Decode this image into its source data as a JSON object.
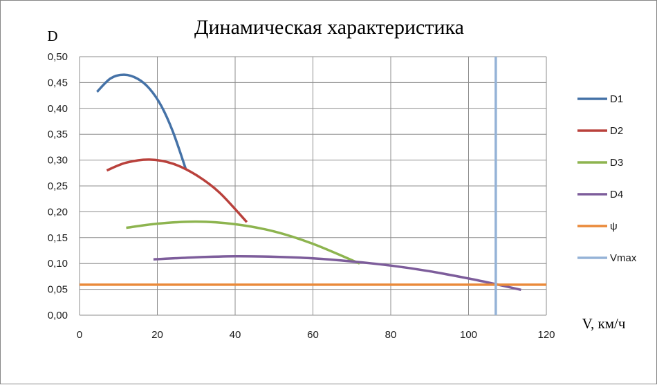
{
  "chart_data": {
    "type": "line",
    "title": "Динамическая характеристика",
    "xlabel": "V, км/ч",
    "ylabel": "D",
    "xlim": [
      0,
      120
    ],
    "ylim": [
      0,
      0.5
    ],
    "x_ticks": [
      "0",
      "20",
      "40",
      "60",
      "80",
      "100",
      "120"
    ],
    "y_ticks": [
      "0,00",
      "0,05",
      "0,10",
      "0,15",
      "0,20",
      "0,25",
      "0,30",
      "0,35",
      "0,40",
      "0,45",
      "0,50"
    ],
    "grid": true,
    "legend_position": "right",
    "series": [
      {
        "name": "D1",
        "color": "#4572a7",
        "x": [
          4.5,
          8,
          11.5,
          15,
          18,
          21,
          24,
          27.3
        ],
        "y": [
          0.432,
          0.458,
          0.465,
          0.457,
          0.438,
          0.405,
          0.355,
          0.283
        ]
      },
      {
        "name": "D2",
        "color": "#b9413c",
        "x": [
          7,
          12,
          18,
          24,
          30,
          36,
          43
        ],
        "y": [
          0.28,
          0.295,
          0.301,
          0.293,
          0.271,
          0.237,
          0.18
        ]
      },
      {
        "name": "D3",
        "color": "#8db44f",
        "x": [
          12,
          20,
          30,
          40,
          50,
          60,
          72
        ],
        "y": [
          0.169,
          0.177,
          0.181,
          0.176,
          0.162,
          0.138,
          0.1
        ]
      },
      {
        "name": "D4",
        "color": "#7d5d9b",
        "x": [
          19,
          30,
          40,
          50,
          60,
          70,
          80,
          90,
          100,
          107,
          113.5
        ],
        "y": [
          0.108,
          0.112,
          0.114,
          0.113,
          0.11,
          0.104,
          0.096,
          0.085,
          0.071,
          0.06,
          0.049
        ]
      },
      {
        "name": "ψ",
        "color": "#ea8a3a",
        "x": [
          0,
          120
        ],
        "y": [
          0.059,
          0.059
        ]
      },
      {
        "name": "Vmax",
        "color": "#95b3d7",
        "x": [
          107,
          107
        ],
        "y": [
          0,
          0.5
        ]
      }
    ]
  }
}
